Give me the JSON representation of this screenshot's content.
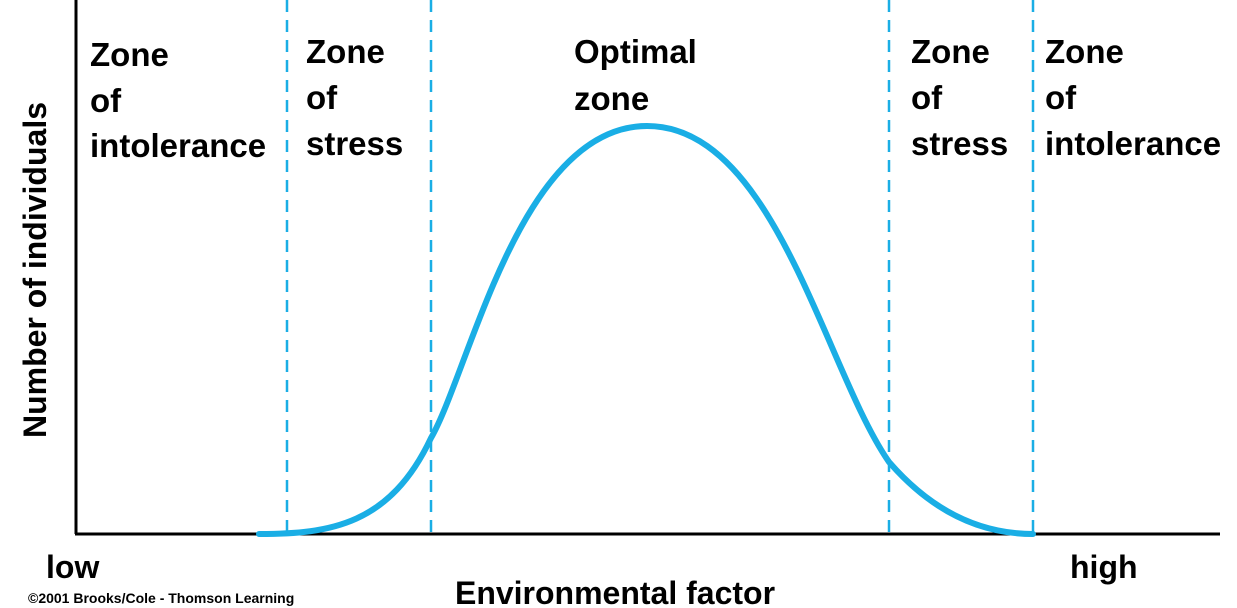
{
  "chart_data": {
    "type": "line",
    "title": "",
    "xlabel": "Environmental factor",
    "ylabel": "Number of individuals",
    "x_axis_low_label": "low",
    "x_axis_high_label": "high",
    "zones": [
      {
        "lines": [
          "Zone",
          "of",
          "intolerance"
        ]
      },
      {
        "lines": [
          "Zone",
          "of",
          "stress"
        ]
      },
      {
        "lines": [
          "Optimal",
          "zone"
        ]
      },
      {
        "lines": [
          "Zone",
          "of",
          "stress"
        ]
      },
      {
        "lines": [
          "Zone",
          "of",
          "intolerance"
        ]
      }
    ],
    "curve_color": "#1aaee5",
    "boundary_line_color": "#1aaee5",
    "boundary_line_style": "dashed",
    "grid": false
  },
  "footer": {
    "copyright": "©2001 Brooks/Cole - Thomson Learning"
  }
}
